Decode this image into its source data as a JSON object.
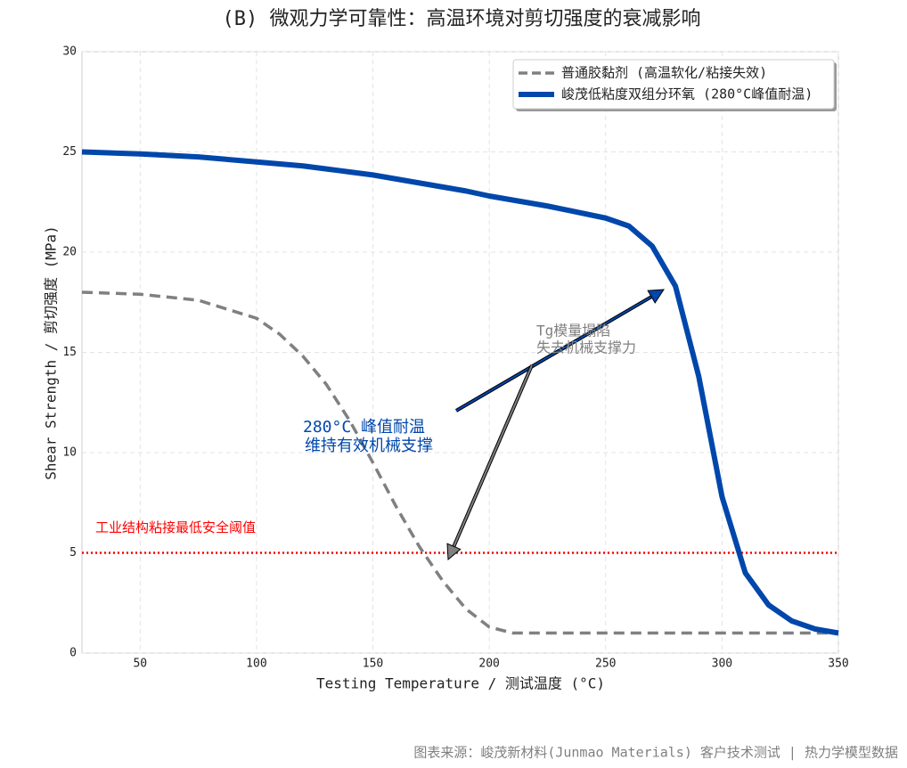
{
  "chart_data": {
    "type": "line",
    "title": "(B) 微观力学可靠性：高温环境对剪切强度的衰减影响",
    "x_label": "Testing Temperature / 测试温度 (°C)",
    "y_label": "Shear Strength / 剪切强度 (MPa)",
    "x": [
      25,
      50,
      75,
      100,
      110,
      120,
      130,
      140,
      150,
      160,
      170,
      180,
      190,
      200,
      210,
      225,
      250,
      260,
      270,
      280,
      290,
      300,
      310,
      320,
      330,
      340,
      350
    ],
    "series": [
      {
        "name": "普通胶黏剂 (高温软化/粘接失效)",
        "color": "#808080",
        "dashed": true,
        "values": [
          18,
          17.9,
          17.6,
          16.7,
          15.9,
          14.8,
          13.4,
          11.6,
          9.5,
          7.3,
          5.3,
          3.6,
          2.2,
          1.3,
          1.0,
          1.0,
          1.0,
          1.0,
          1.0,
          1.0,
          1.0,
          1.0,
          1.0,
          1.0,
          1.0,
          1.0,
          1.0
        ]
      },
      {
        "name": "峻茂低粘度双组分环氧 (280°C峰值耐温)",
        "color": "#0047ab",
        "dashed": false,
        "values": [
          25.0,
          24.9,
          24.75,
          24.5,
          24.4,
          24.3,
          24.15,
          24.0,
          23.85,
          23.65,
          23.45,
          23.25,
          23.05,
          22.8,
          22.6,
          22.3,
          21.7,
          21.3,
          20.3,
          18.3,
          13.8,
          7.8,
          4.0,
          2.4,
          1.6,
          1.2,
          1.0
        ]
      }
    ],
    "xlim": [
      25,
      350
    ],
    "xticks": [
      50,
      100,
      150,
      200,
      250,
      300,
      350
    ],
    "ylim": [
      0,
      30
    ],
    "yticks": [
      0,
      5,
      10,
      15,
      20,
      25,
      30
    ],
    "grid": true,
    "legend": "upper right",
    "threshold": {
      "value": 5,
      "label": "工业结构粘接最低安全阈值",
      "color": "#ff0000"
    },
    "annotations": [
      {
        "lines": [
          "280°C 峰值耐温",
          "维持有效机械支撑"
        ],
        "color": "#0047ab"
      },
      {
        "lines": [
          "Tg模量塌陷",
          "失去机械支撑力"
        ],
        "color": "#808080"
      }
    ],
    "source": "图表来源：峻茂新材料(Junmao Materials) 客户技术测试 | 热力学模型数据"
  }
}
